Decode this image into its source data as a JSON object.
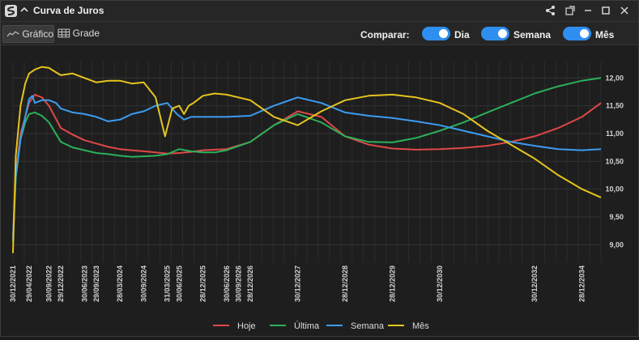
{
  "window": {
    "title": "Curva de Juros",
    "buttons": [
      "share-icon",
      "popout-icon",
      "minimize-icon",
      "maximize-icon",
      "close-icon"
    ]
  },
  "toolbar": {
    "tab_chart": "Gráfico",
    "tab_grid": "Grade",
    "compare_label": "Comparar:",
    "toggles": [
      {
        "label": "Dia",
        "on": true
      },
      {
        "label": "Semana",
        "on": true
      },
      {
        "label": "Mês",
        "on": true
      }
    ],
    "accent": "#2f8ff0"
  },
  "chart_data": {
    "type": "line",
    "x_ticks": [
      "30/12/2021",
      "29/04/2022",
      "30/09/2022",
      "29/12/2022",
      "30/06/2023",
      "29/09/2023",
      "28/03/2024",
      "30/09/2024",
      "31/03/2025",
      "30/06/2025",
      "28/12/2025",
      "30/06/2026",
      "30/09/2026",
      "28/12/2026",
      "30/12/2027",
      "28/12/2028",
      "28/12/2029",
      "30/12/2030",
      "30/12/2032",
      "28/12/2034"
    ],
    "ylim": [
      8.8,
      12.15
    ],
    "y_ticks": [
      "9,00",
      "9,50",
      "10,00",
      "10,50",
      "11,00",
      "11,50",
      "12,00"
    ],
    "grid": true,
    "legend_position": "bottom",
    "series": [
      {
        "name": "Hoje",
        "color": "#e04848",
        "x": [
          2021.99,
          2022.05,
          2022.15,
          2022.25,
          2022.33,
          2022.45,
          2022.6,
          2022.75,
          2023.0,
          2023.25,
          2023.5,
          2023.75,
          2024.0,
          2024.25,
          2024.5,
          2024.75,
          2025.0,
          2025.25,
          2025.5,
          2025.75,
          2026.0,
          2026.5,
          2027.0,
          2027.5,
          2028.0,
          2028.5,
          2029.0,
          2029.5,
          2030.0,
          2030.5,
          2031.0,
          2031.5,
          2032.0,
          2032.5,
          2033.0,
          2033.5,
          2034.0,
          2034.4
        ],
        "y": [
          9.15,
          10.3,
          11.0,
          11.3,
          11.55,
          11.7,
          11.65,
          11.5,
          11.1,
          10.98,
          10.88,
          10.82,
          10.76,
          10.72,
          10.7,
          10.68,
          10.66,
          10.64,
          10.65,
          10.67,
          10.7,
          10.72,
          10.85,
          11.15,
          11.4,
          11.3,
          10.95,
          10.8,
          10.73,
          10.71,
          10.72,
          10.74,
          10.78,
          10.85,
          10.95,
          11.1,
          11.3,
          11.55
        ]
      },
      {
        "name": "Última",
        "color": "#2bb05a",
        "x": [
          2021.99,
          2022.05,
          2022.15,
          2022.25,
          2022.33,
          2022.45,
          2022.6,
          2022.75,
          2023.0,
          2023.25,
          2023.5,
          2023.75,
          2024.0,
          2024.25,
          2024.5,
          2024.75,
          2025.0,
          2025.25,
          2025.5,
          2025.75,
          2026.0,
          2026.25,
          2026.5,
          2027.0,
          2027.5,
          2028.0,
          2028.5,
          2029.0,
          2029.5,
          2030.0,
          2030.5,
          2031.0,
          2031.5,
          2032.0,
          2032.5,
          2033.0,
          2033.5,
          2034.0,
          2034.4
        ],
        "y": [
          9.05,
          10.2,
          10.9,
          11.2,
          11.35,
          11.38,
          11.32,
          11.2,
          10.85,
          10.75,
          10.7,
          10.65,
          10.63,
          10.6,
          10.58,
          10.59,
          10.6,
          10.63,
          10.72,
          10.68,
          10.66,
          10.66,
          10.7,
          10.85,
          11.15,
          11.35,
          11.2,
          10.95,
          10.85,
          10.84,
          10.92,
          11.05,
          11.2,
          11.38,
          11.55,
          11.72,
          11.85,
          11.95,
          12.0
        ]
      },
      {
        "name": "Semana",
        "color": "#3b9cf0",
        "x": [
          2021.99,
          2022.05,
          2022.15,
          2022.25,
          2022.33,
          2022.4,
          2022.45,
          2022.6,
          2022.75,
          2022.9,
          2023.0,
          2023.25,
          2023.5,
          2023.75,
          2024.0,
          2024.25,
          2024.5,
          2024.75,
          2025.0,
          2025.25,
          2025.45,
          2025.6,
          2025.75,
          2026.0,
          2026.5,
          2027.0,
          2027.5,
          2028.0,
          2028.5,
          2029.0,
          2029.5,
          2030.0,
          2030.5,
          2031.0,
          2031.5,
          2032.0,
          2032.5,
          2033.0,
          2033.5,
          2034.0,
          2034.4
        ],
        "y": [
          9.1,
          10.25,
          10.9,
          11.3,
          11.62,
          11.68,
          11.55,
          11.6,
          11.6,
          11.55,
          11.45,
          11.38,
          11.35,
          11.3,
          11.22,
          11.25,
          11.35,
          11.4,
          11.5,
          11.55,
          11.35,
          11.25,
          11.3,
          11.3,
          11.3,
          11.32,
          11.5,
          11.65,
          11.55,
          11.38,
          11.32,
          11.28,
          11.22,
          11.15,
          11.05,
          10.95,
          10.85,
          10.78,
          10.72,
          10.7,
          10.72
        ]
      },
      {
        "name": "Mês",
        "color": "#e5c41d",
        "x": [
          2021.99,
          2022.05,
          2022.15,
          2022.25,
          2022.33,
          2022.45,
          2022.6,
          2022.75,
          2022.9,
          2023.0,
          2023.25,
          2023.5,
          2023.75,
          2024.0,
          2024.25,
          2024.5,
          2024.75,
          2025.0,
          2025.2,
          2025.35,
          2025.5,
          2025.6,
          2025.7,
          2025.8,
          2026.0,
          2026.25,
          2026.5,
          2027.0,
          2027.5,
          2028.0,
          2028.5,
          2029.0,
          2029.5,
          2030.0,
          2030.5,
          2031.0,
          2031.5,
          2032.0,
          2032.5,
          2033.0,
          2033.5,
          2034.0,
          2034.4
        ],
        "y": [
          8.85,
          10.6,
          11.5,
          11.9,
          12.08,
          12.15,
          12.2,
          12.18,
          12.1,
          12.05,
          12.08,
          12.0,
          11.92,
          11.95,
          11.95,
          11.9,
          11.92,
          11.65,
          10.95,
          11.45,
          11.5,
          11.35,
          11.5,
          11.55,
          11.68,
          11.72,
          11.7,
          11.6,
          11.3,
          11.15,
          11.4,
          11.6,
          11.68,
          11.7,
          11.65,
          11.55,
          11.35,
          11.05,
          10.8,
          10.55,
          10.25,
          10.0,
          9.85
        ]
      }
    ]
  }
}
